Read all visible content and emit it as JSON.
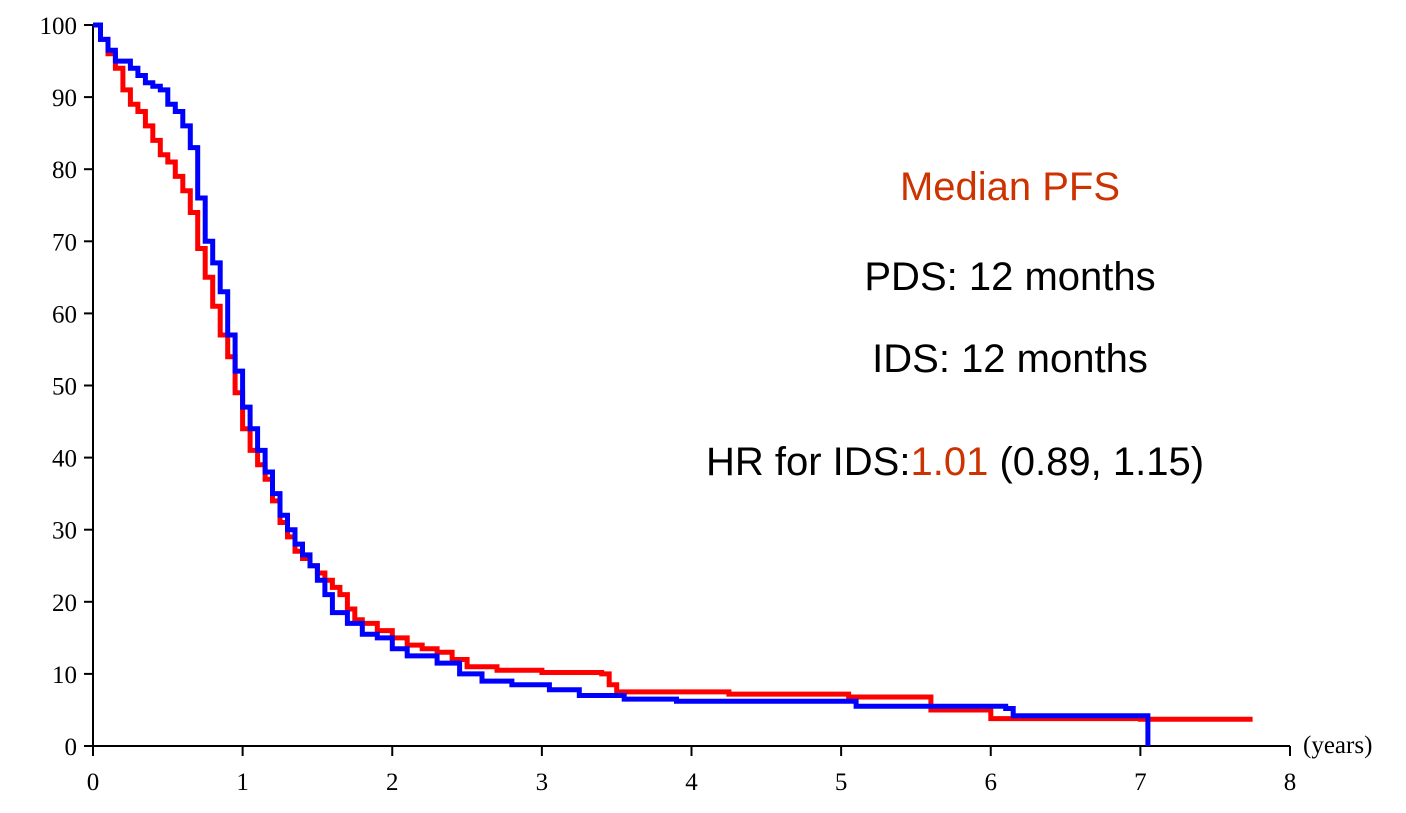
{
  "chart_data": {
    "type": "line",
    "title": "",
    "xlabel": "(years)",
    "ylabel": "",
    "xlim": [
      0,
      8
    ],
    "ylim": [
      0,
      100
    ],
    "xticks": [
      "0",
      "1",
      "2",
      "3",
      "4",
      "5",
      "6",
      "7",
      "8"
    ],
    "yticks": [
      "0",
      "10",
      "20",
      "30",
      "40",
      "50",
      "60",
      "70",
      "80",
      "90",
      "100"
    ],
    "grid": false,
    "legend": "none",
    "series": [
      {
        "color": "#ff0000",
        "points": [
          [
            0,
            100
          ],
          [
            0.05,
            98
          ],
          [
            0.1,
            96
          ],
          [
            0.15,
            94
          ],
          [
            0.2,
            91
          ],
          [
            0.25,
            89
          ],
          [
            0.3,
            88
          ],
          [
            0.35,
            86
          ],
          [
            0.4,
            84
          ],
          [
            0.45,
            82
          ],
          [
            0.5,
            81
          ],
          [
            0.55,
            79
          ],
          [
            0.6,
            77
          ],
          [
            0.65,
            74
          ],
          [
            0.7,
            69
          ],
          [
            0.75,
            65
          ],
          [
            0.8,
            61
          ],
          [
            0.85,
            57
          ],
          [
            0.9,
            54
          ],
          [
            0.95,
            49
          ],
          [
            1.0,
            44
          ],
          [
            1.05,
            41
          ],
          [
            1.1,
            39
          ],
          [
            1.15,
            37
          ],
          [
            1.2,
            34
          ],
          [
            1.25,
            31
          ],
          [
            1.3,
            29
          ],
          [
            1.35,
            27
          ],
          [
            1.4,
            26
          ],
          [
            1.45,
            25
          ],
          [
            1.5,
            24
          ],
          [
            1.55,
            23
          ],
          [
            1.6,
            22
          ],
          [
            1.65,
            21
          ],
          [
            1.7,
            19
          ],
          [
            1.75,
            17.5
          ],
          [
            1.8,
            17
          ],
          [
            1.9,
            16
          ],
          [
            2.0,
            15
          ],
          [
            2.1,
            14
          ],
          [
            2.2,
            13.5
          ],
          [
            2.3,
            13
          ],
          [
            2.4,
            12
          ],
          [
            2.5,
            11
          ],
          [
            2.7,
            10.5
          ],
          [
            3.0,
            10.2
          ],
          [
            3.4,
            10
          ],
          [
            3.45,
            8.5
          ],
          [
            3.5,
            7.5
          ],
          [
            4.25,
            7.2
          ],
          [
            5.05,
            6.8
          ],
          [
            5.6,
            5
          ],
          [
            6.0,
            3.8
          ],
          [
            7.0,
            3.7
          ],
          [
            7.75,
            3.7
          ]
        ]
      },
      {
        "color": "#0000ff",
        "points": [
          [
            0,
            100
          ],
          [
            0.05,
            98
          ],
          [
            0.1,
            96.5
          ],
          [
            0.15,
            95
          ],
          [
            0.25,
            94
          ],
          [
            0.3,
            93
          ],
          [
            0.35,
            92
          ],
          [
            0.4,
            91.5
          ],
          [
            0.45,
            91
          ],
          [
            0.5,
            89
          ],
          [
            0.55,
            88
          ],
          [
            0.6,
            86
          ],
          [
            0.65,
            83
          ],
          [
            0.7,
            76
          ],
          [
            0.75,
            70
          ],
          [
            0.8,
            67
          ],
          [
            0.85,
            63
          ],
          [
            0.9,
            57
          ],
          [
            0.95,
            52
          ],
          [
            1.0,
            47
          ],
          [
            1.05,
            44
          ],
          [
            1.1,
            41
          ],
          [
            1.15,
            38
          ],
          [
            1.2,
            35
          ],
          [
            1.25,
            32
          ],
          [
            1.3,
            30
          ],
          [
            1.35,
            28
          ],
          [
            1.4,
            26.5
          ],
          [
            1.45,
            25
          ],
          [
            1.5,
            23
          ],
          [
            1.55,
            21
          ],
          [
            1.6,
            18.5
          ],
          [
            1.7,
            17
          ],
          [
            1.8,
            15.5
          ],
          [
            1.9,
            15
          ],
          [
            2.0,
            13.5
          ],
          [
            2.1,
            12.5
          ],
          [
            2.3,
            11.5
          ],
          [
            2.45,
            10
          ],
          [
            2.6,
            9
          ],
          [
            2.8,
            8.5
          ],
          [
            3.05,
            7.8
          ],
          [
            3.25,
            7
          ],
          [
            3.55,
            6.5
          ],
          [
            3.9,
            6.2
          ],
          [
            5.1,
            5.5
          ],
          [
            6.1,
            5.2
          ],
          [
            6.15,
            4.2
          ],
          [
            7.05,
            4
          ],
          [
            7.05,
            0
          ]
        ]
      }
    ],
    "annotations": {
      "median_title": "Median PFS",
      "pds_line": "PDS: 12 months",
      "ids_line": "IDS: 12 months",
      "hr_prefix": "HR for IDS:",
      "hr_value": "1.01",
      "hr_ci": " (0.89, 1.15)"
    },
    "colors": {
      "annotation_accent": "#cc3300",
      "annotation_text": "#000000"
    }
  }
}
